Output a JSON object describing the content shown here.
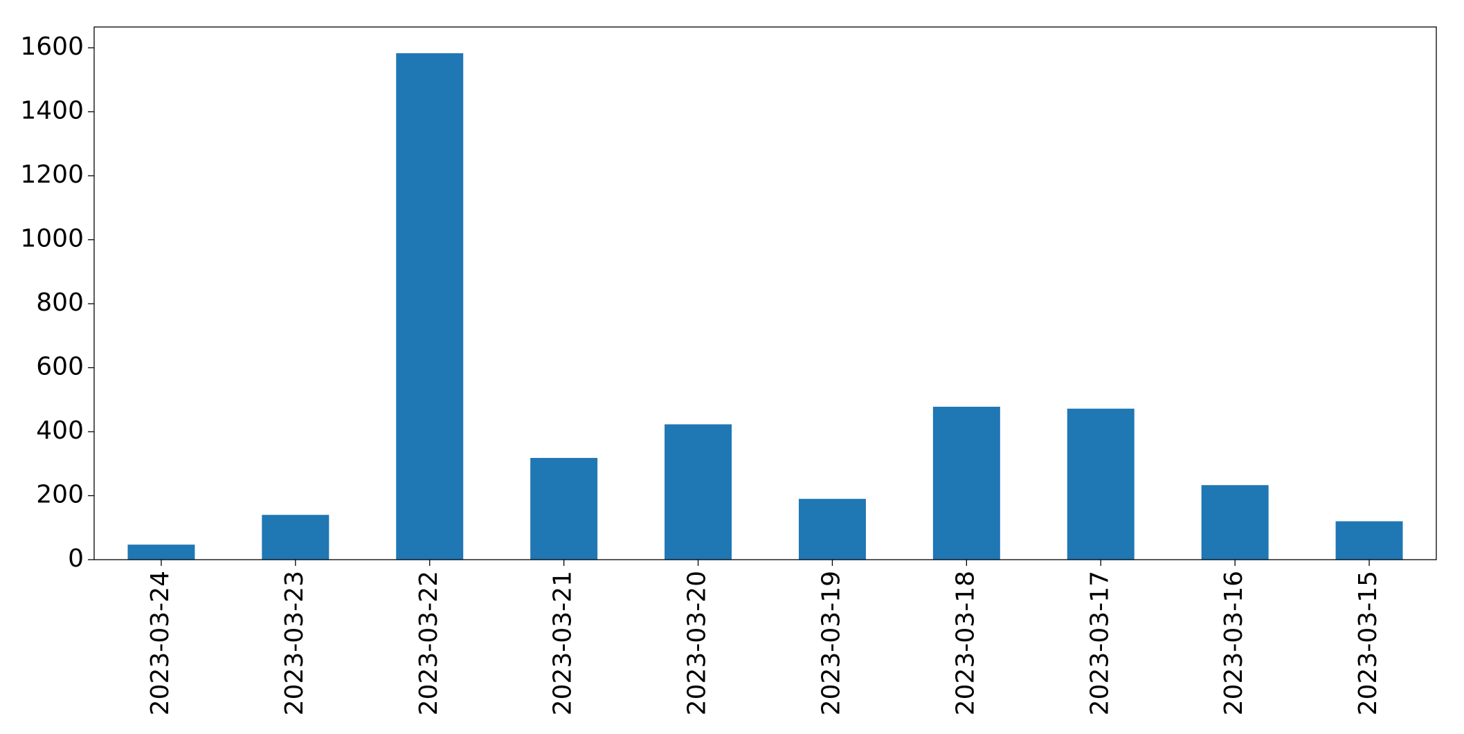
{
  "chart_data": {
    "type": "bar",
    "categories": [
      "2023-03-24",
      "2023-03-23",
      "2023-03-22",
      "2023-03-21",
      "2023-03-20",
      "2023-03-19",
      "2023-03-18",
      "2023-03-17",
      "2023-03-16",
      "2023-03-15"
    ],
    "values": [
      47,
      140,
      1583,
      318,
      423,
      190,
      478,
      472,
      233,
      120
    ],
    "color": "#1f77b4",
    "ylim": [
      0,
      1665
    ],
    "yticks": [
      0,
      200,
      400,
      600,
      800,
      1000,
      1200,
      1400,
      1600
    ],
    "grid": false
  }
}
